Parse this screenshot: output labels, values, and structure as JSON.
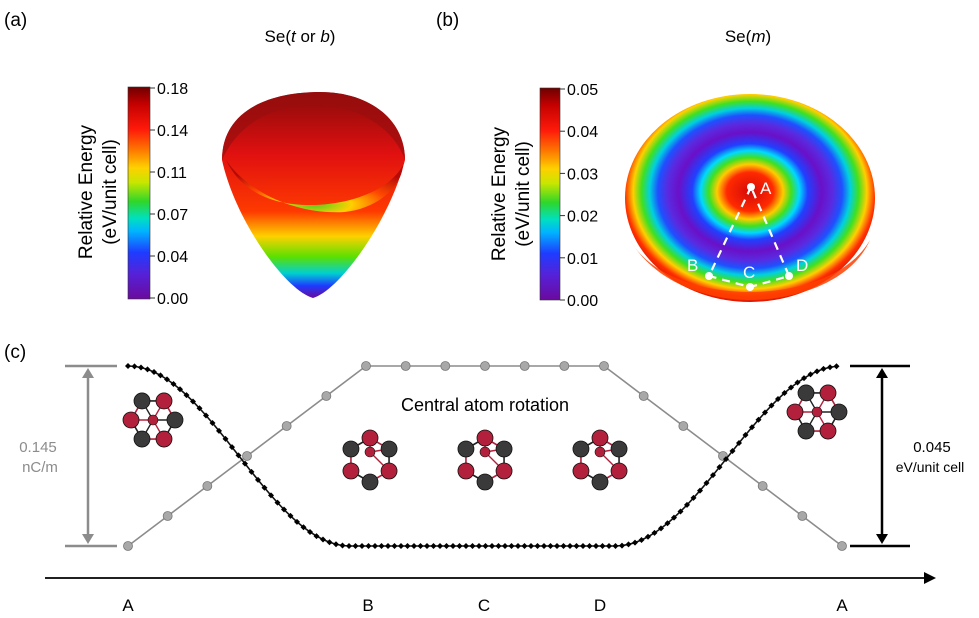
{
  "panel_a": {
    "label": "(a)",
    "title_prefix": "Se(",
    "title_t": "t",
    "title_or": " or ",
    "title_b": "b",
    "title_suffix": ")",
    "colorbar_label_1": "Relative Energy",
    "colorbar_label_2": "(eV/unit cell)",
    "ticks": [
      "0.18",
      "0.14",
      "0.11",
      "0.07",
      "0.04",
      "0.00"
    ]
  },
  "panel_b": {
    "label": "(b)",
    "title_prefix": "Se(",
    "title_m": "m",
    "title_suffix": ")",
    "colorbar_label_1": "Relative Energy",
    "colorbar_label_2": "(eV/unit cell)",
    "ticks": [
      "0.05",
      "0.04",
      "0.03",
      "0.02",
      "0.01",
      "0.00"
    ],
    "points": [
      "A",
      "B",
      "C",
      "D"
    ]
  },
  "panel_c": {
    "label": "(c)",
    "annotation": "Central atom rotation",
    "left_value": "0.145",
    "left_unit": "nC/m",
    "right_value": "0.045",
    "right_unit": "eV/unit cell",
    "x_labels": [
      "A",
      "B",
      "C",
      "D",
      "A"
    ]
  },
  "colors": {
    "energy_curve": "#111111",
    "polarization_curve": "#8c8c8c",
    "atom_dark": "#3a3a3a",
    "atom_red": "#b3203c"
  }
}
